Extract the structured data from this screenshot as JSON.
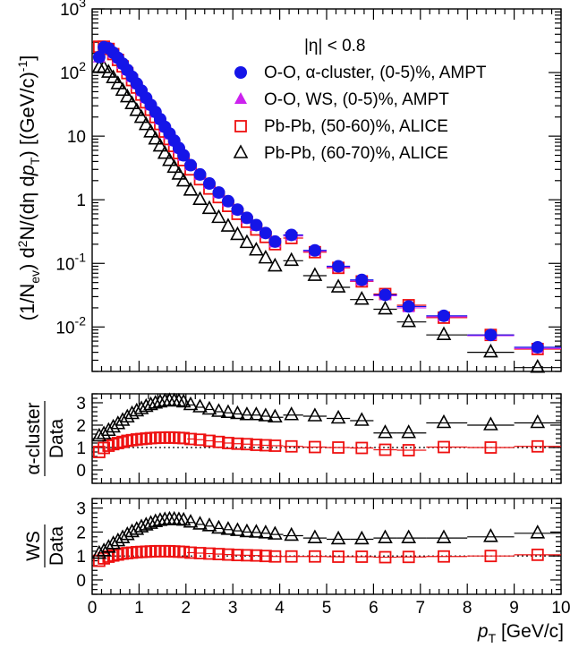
{
  "chart_data": [
    {
      "type": "scatter",
      "panel": "spectrum",
      "ylabel": "(1/N_ev) d²N/(dη dp_T) [(GeV/c)⁻¹]",
      "xlim": [
        0,
        10
      ],
      "ylim": [
        0.002,
        1000
      ],
      "yscale": "log",
      "ytick_labels": [
        "10^-2",
        "10^-1",
        "1",
        "10",
        "10^2",
        "10^3"
      ],
      "legend_position": "top-right",
      "legend_header": "|η| < 0.8",
      "x": [
        0.15,
        0.25,
        0.35,
        0.45,
        0.55,
        0.65,
        0.75,
        0.85,
        0.95,
        1.05,
        1.15,
        1.25,
        1.35,
        1.45,
        1.55,
        1.65,
        1.75,
        1.85,
        1.95,
        2.1,
        2.3,
        2.5,
        2.7,
        2.9,
        3.1,
        3.3,
        3.5,
        3.7,
        3.9,
        4.25,
        4.75,
        5.25,
        5.75,
        6.25,
        6.75,
        7.5,
        8.5,
        9.5
      ],
      "series": [
        {
          "name": "O-O, α-cluster, (0-5)%, AMPT",
          "marker": "circle",
          "color": "#1515e8",
          "values": [
            175,
            250,
            240,
            205,
            170,
            138,
            110,
            86,
            67,
            52,
            40,
            31,
            24,
            18.5,
            14,
            11,
            8.5,
            6.5,
            5,
            3.5,
            2.5,
            1.8,
            1.3,
            0.95,
            0.7,
            0.52,
            0.4,
            0.3,
            0.22,
            0.28,
            0.16,
            0.09,
            0.055,
            0.032,
            0.021,
            0.015,
            0.0075,
            0.0048
          ]
        },
        {
          "name": "O-O, WS, (0-5)%, AMPT",
          "marker": "triangle-up-filled",
          "color": "#cc22ee",
          "values": [
            170,
            245,
            235,
            200,
            165,
            134,
            107,
            84,
            65,
            50,
            39,
            30,
            23,
            18,
            13.5,
            10.5,
            8.2,
            6.3,
            4.8,
            3.4,
            2.4,
            1.75,
            1.25,
            0.92,
            0.68,
            0.5,
            0.38,
            0.29,
            0.21,
            0.27,
            0.155,
            0.087,
            0.053,
            0.031,
            0.02,
            0.0145,
            0.0073,
            0.0046
          ]
        },
        {
          "name": "Pb-Pb, (50-60)%, ALICE",
          "marker": "square-open",
          "color": "#ee1111",
          "values": [
            255,
            255,
            235,
            195,
            158,
            125,
            98,
            76,
            58,
            45,
            34,
            26,
            20,
            15.5,
            11.8,
            9,
            7,
            5.4,
            4.2,
            3,
            2.1,
            1.5,
            1.1,
            0.8,
            0.6,
            0.45,
            0.34,
            0.26,
            0.2,
            0.25,
            0.15,
            0.085,
            0.052,
            0.033,
            0.022,
            0.014,
            0.0075,
            0.0045
          ]
        },
        {
          "name": "Pb-Pb, (60-70)%, ALICE",
          "marker": "triangle-up-open",
          "color": "#000000",
          "values": [
            120,
            118,
            100,
            82,
            66,
            52,
            41,
            32,
            25,
            19.5,
            15,
            11.5,
            8.9,
            6.9,
            5.3,
            4.1,
            3.2,
            2.5,
            1.95,
            1.4,
            1,
            0.72,
            0.52,
            0.38,
            0.28,
            0.21,
            0.16,
            0.12,
            0.09,
            0.11,
            0.064,
            0.042,
            0.027,
            0.019,
            0.012,
            0.0075,
            0.004,
            0.0023
          ]
        }
      ]
    },
    {
      "type": "scatter",
      "panel": "ratio-alpha",
      "ylabel_num": "α-cluster",
      "ylabel_den": "Data",
      "xlim": [
        0,
        10
      ],
      "ylim": [
        -0.6,
        3.4
      ],
      "ytick_labels": [
        "0",
        "1",
        "2",
        "3"
      ],
      "reference_line": 1,
      "series": [
        {
          "name": "vs Pb-Pb (50-60)%",
          "marker": "square-open",
          "color": "#ee1111",
          "values": [
            0.8,
            0.98,
            1.08,
            1.15,
            1.2,
            1.25,
            1.3,
            1.33,
            1.36,
            1.38,
            1.4,
            1.42,
            1.43,
            1.44,
            1.44,
            1.45,
            1.44,
            1.43,
            1.42,
            1.38,
            1.35,
            1.3,
            1.25,
            1.2,
            1.17,
            1.15,
            1.12,
            1.1,
            1.08,
            1.05,
            1.02,
            1.0,
            0.98,
            0.9,
            0.88,
            1.02,
            1.0,
            1.05
          ]
        },
        {
          "name": "vs Pb-Pb (60-70)%",
          "marker": "triangle-up-open",
          "color": "#000000",
          "values": [
            1.5,
            1.6,
            1.75,
            1.9,
            2.05,
            2.2,
            2.35,
            2.5,
            2.62,
            2.72,
            2.82,
            2.9,
            2.97,
            3.02,
            3.06,
            3.08,
            3.07,
            3.06,
            3.02,
            2.9,
            2.8,
            2.7,
            2.6,
            2.55,
            2.5,
            2.45,
            2.45,
            2.4,
            2.35,
            2.45,
            2.4,
            2.3,
            2.2,
            1.65,
            1.65,
            2.1,
            2.0,
            2.1
          ]
        }
      ]
    },
    {
      "type": "scatter",
      "panel": "ratio-ws",
      "ylabel_num": "WS",
      "ylabel_den": "Data",
      "xlabel": "p_T [GeV/c]",
      "xlim": [
        0,
        10
      ],
      "ylim": [
        -0.6,
        3.4
      ],
      "ytick_labels": [
        "0",
        "1",
        "2",
        "3"
      ],
      "xtick_labels": [
        "0",
        "1",
        "2",
        "3",
        "4",
        "5",
        "6",
        "7",
        "8",
        "9",
        "10"
      ],
      "reference_line": 1,
      "series": [
        {
          "name": "vs Pb-Pb (50-60)%",
          "marker": "square-open",
          "color": "#ee1111",
          "values": [
            0.8,
            0.9,
            0.97,
            1.02,
            1.06,
            1.1,
            1.12,
            1.14,
            1.16,
            1.17,
            1.18,
            1.19,
            1.2,
            1.2,
            1.2,
            1.2,
            1.19,
            1.18,
            1.17,
            1.14,
            1.12,
            1.1,
            1.08,
            1.06,
            1.04,
            1.03,
            1.02,
            1.0,
            0.98,
            0.98,
            0.98,
            0.97,
            0.97,
            0.95,
            0.96,
            0.98,
            1.0,
            1.05
          ]
        },
        {
          "name": "vs Pb-Pb (60-70)%",
          "marker": "triangle-up-open",
          "color": "#000000",
          "values": [
            1.1,
            1.2,
            1.35,
            1.5,
            1.62,
            1.75,
            1.88,
            2.0,
            2.1,
            2.2,
            2.28,
            2.35,
            2.42,
            2.47,
            2.5,
            2.52,
            2.52,
            2.5,
            2.48,
            2.4,
            2.32,
            2.25,
            2.15,
            2.1,
            2.05,
            2.0,
            1.98,
            1.95,
            1.9,
            1.85,
            1.75,
            1.7,
            1.7,
            1.75,
            1.75,
            1.75,
            1.8,
            1.95
          ]
        }
      ]
    }
  ]
}
